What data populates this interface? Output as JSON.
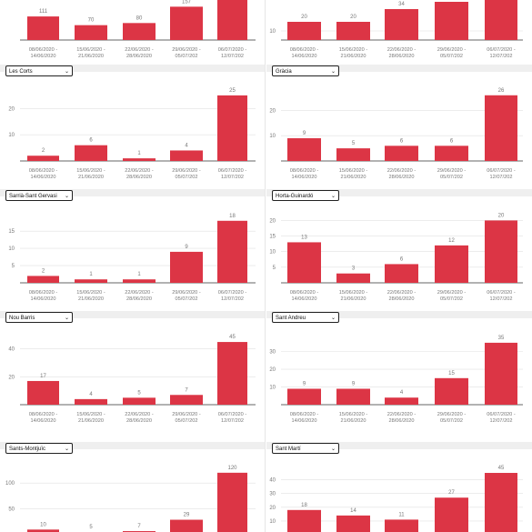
{
  "colors": {
    "bar": "#dc3545",
    "axis": "#333333",
    "grid": "#e0e0e0",
    "text": "#777777"
  },
  "dropdown_icon": "chevron-down-icon",
  "chart_data": [
    {
      "type": "bar",
      "district": "",
      "column": "left",
      "row": 0,
      "categories": [
        "08/06/2020 -\n14/06/2020",
        "15/06/2020 -\n21/06/2020",
        "22/06/2020 -\n28/06/2020",
        "29/06/2020 -\n05/07/202",
        "06/07/2020 -\n12/07/202"
      ],
      "values": [
        111,
        70,
        80,
        157,
        null
      ],
      "yticks": [],
      "ylim": [
        0,
        300
      ]
    },
    {
      "type": "bar",
      "district": "",
      "column": "right",
      "row": 0,
      "categories": [
        "08/06/2020 -\n14/06/2020",
        "15/06/2020 -\n21/06/2020",
        "22/06/2020 -\n28/06/2020",
        "29/06/2020 -\n05/07/202",
        "06/07/2020 -\n12/07/202"
      ],
      "values": [
        20,
        20,
        34,
        42,
        null
      ],
      "yticks": [
        10
      ],
      "ylim": [
        0,
        70
      ]
    },
    {
      "type": "bar",
      "district": "Les Corts",
      "column": "left",
      "row": 1,
      "categories": [
        "08/06/2020 -\n14/06/2020",
        "15/06/2020 -\n21/06/2020",
        "22/06/2020 -\n28/06/2020",
        "29/06/2020 -\n05/07/202",
        "06/07/2020 -\n12/07/202"
      ],
      "values": [
        2,
        6,
        1,
        4,
        25
      ],
      "yticks": [
        10,
        20
      ],
      "ylim": [
        0,
        26
      ]
    },
    {
      "type": "bar",
      "district": "Gràcia",
      "column": "right",
      "row": 1,
      "categories": [
        "08/06/2020 -\n14/06/2020",
        "15/06/2020 -\n21/06/2020",
        "22/06/2020 -\n28/06/2020",
        "29/06/2020 -\n05/07/202",
        "06/07/2020 -\n12/07/202"
      ],
      "values": [
        9,
        5,
        6,
        6,
        26
      ],
      "yticks": [
        10,
        20
      ],
      "ylim": [
        0,
        27
      ]
    },
    {
      "type": "bar",
      "district": "Sarrià-Sant Gervasi",
      "column": "left",
      "row": 2,
      "categories": [
        "08/06/2020 -\n14/06/2020",
        "15/06/2020 -\n21/06/2020",
        "22/06/2020 -\n28/06/2020",
        "29/06/2020 -\n05/07/202",
        "06/07/2020 -\n12/07/202"
      ],
      "values": [
        2,
        1,
        1,
        9,
        18
      ],
      "yticks": [
        5,
        10,
        15
      ],
      "ylim": [
        0,
        19
      ]
    },
    {
      "type": "bar",
      "district": "Horta-Guinardó",
      "column": "right",
      "row": 2,
      "categories": [
        "08/06/2020 -\n14/06/2020",
        "15/06/2020 -\n21/06/2020",
        "22/06/2020 -\n28/06/2020",
        "29/06/2020 -\n05/07/202",
        "06/07/2020 -\n12/07/202"
      ],
      "values": [
        13,
        3,
        6,
        12,
        20
      ],
      "yticks": [
        5,
        10,
        15,
        20
      ],
      "ylim": [
        0,
        21
      ]
    },
    {
      "type": "bar",
      "district": "Nou Barris",
      "column": "left",
      "row": 3,
      "categories": [
        "08/06/2020 -\n14/06/2020",
        "15/06/2020 -\n21/06/2020",
        "22/06/2020 -\n28/06/2020",
        "29/06/2020 -\n05/07/202",
        "06/07/2020 -\n12/07/202"
      ],
      "values": [
        17,
        4,
        5,
        7,
        45
      ],
      "yticks": [
        20,
        40
      ],
      "ylim": [
        0,
        47
      ]
    },
    {
      "type": "bar",
      "district": "Sant Andreu",
      "column": "right",
      "row": 3,
      "categories": [
        "08/06/2020 -\n14/06/2020",
        "15/06/2020 -\n21/06/2020",
        "22/06/2020 -\n28/06/2020",
        "29/06/2020 -\n05/07/202",
        "06/07/2020 -\n12/07/202"
      ],
      "values": [
        9,
        9,
        4,
        15,
        35
      ],
      "yticks": [
        10,
        20,
        30
      ],
      "ylim": [
        0,
        37
      ]
    },
    {
      "type": "bar",
      "district": "Sants-Montjuïc",
      "column": "left",
      "row": 4,
      "categories": [
        "08/06/2020 -\n14/06/2020",
        "15/06/2020 -\n21/06/2020",
        "22/06/2020 -\n28/06/2020",
        "29/06/2020 -\n05/07/202",
        "06/07/2020 -\n12/07/202"
      ],
      "values": [
        10,
        5,
        7,
        29,
        120
      ],
      "yticks": [
        50,
        100
      ],
      "ylim": [
        0,
        125
      ]
    },
    {
      "type": "bar",
      "district": "Sant Martí",
      "column": "right",
      "row": 4,
      "categories": [
        "08/06/2020 -\n14/06/2020",
        "15/06/2020 -\n21/06/2020",
        "22/06/2020 -\n28/06/2020",
        "29/06/2020 -\n05/07/202",
        "06/07/2020 -\n12/07/202"
      ],
      "values": [
        18,
        14,
        11,
        27,
        45
      ],
      "yticks": [
        10,
        20,
        30,
        40
      ],
      "ylim": [
        0,
        47
      ]
    }
  ]
}
